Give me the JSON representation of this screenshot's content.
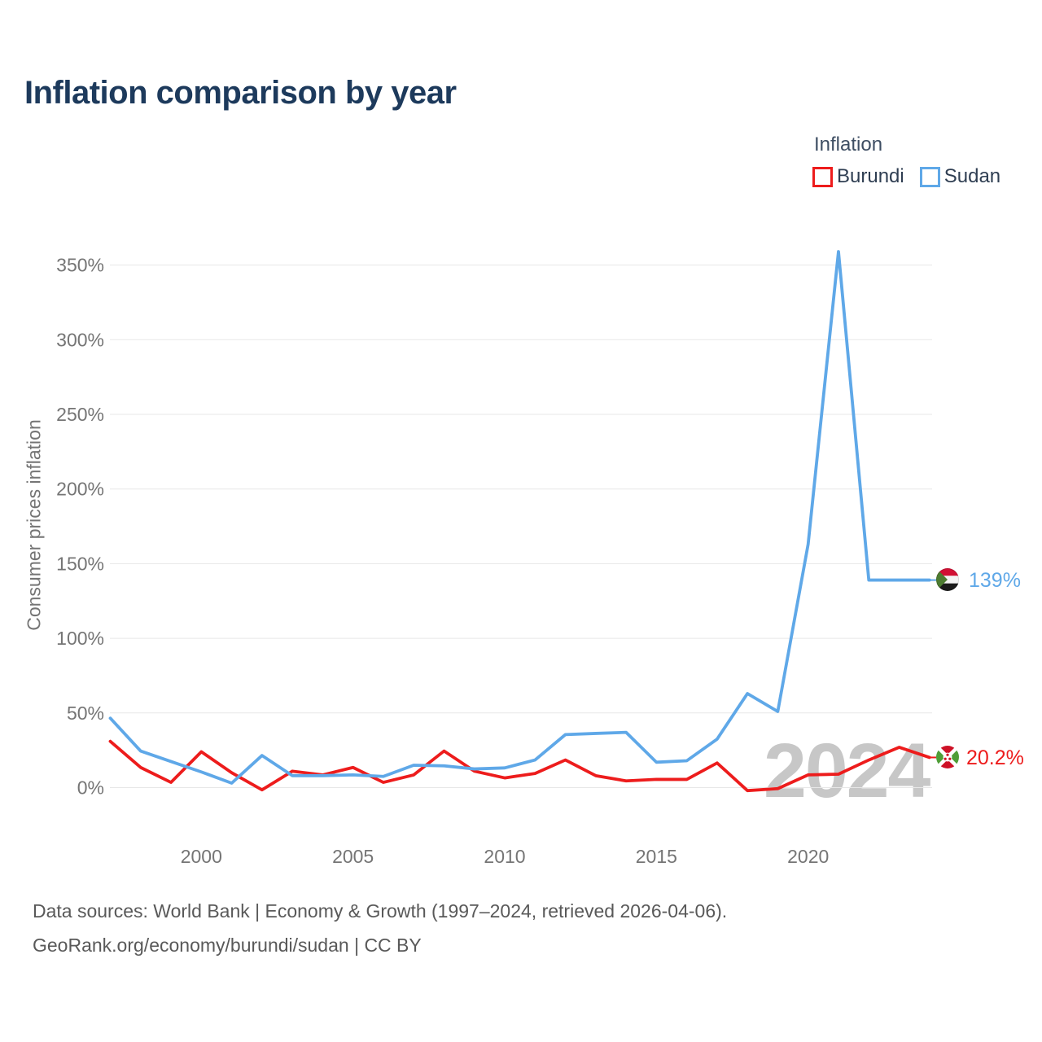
{
  "title": "Inflation comparison by year",
  "legend": {
    "title": "Inflation",
    "items": [
      {
        "label": "Burundi",
        "color": "#ed1c1c"
      },
      {
        "label": "Sudan",
        "color": "#5fa8e8"
      }
    ]
  },
  "watermark": "2024",
  "end_labels": {
    "sudan": "139%",
    "burundi": "20.2%"
  },
  "footer": {
    "line1": "Data sources: World Bank | Economy & Growth (1997–2024, retrieved 2026-04-06).",
    "line2": "GeoRank.org/economy/burundi/sudan | CC BY"
  },
  "chart_data": {
    "type": "line",
    "title": "Inflation comparison by year",
    "xlabel": "",
    "ylabel": "Consumer prices inflation",
    "legend_position": "top-right",
    "grid": "horizontal",
    "ylim": [
      0,
      350
    ],
    "x": [
      1997,
      1998,
      1999,
      2000,
      2001,
      2002,
      2003,
      2004,
      2005,
      2006,
      2007,
      2008,
      2009,
      2010,
      2011,
      2012,
      2013,
      2014,
      2015,
      2016,
      2017,
      2018,
      2019,
      2020,
      2021,
      2022,
      2023,
      2024
    ],
    "series": [
      {
        "name": "Burundi",
        "color": "#ed1c1c",
        "values": [
          31,
          13.5,
          3.5,
          24,
          10,
          -1.5,
          11,
          8.5,
          13.5,
          3.5,
          8.5,
          24.5,
          11,
          6.5,
          9.5,
          18.5,
          8,
          4.5,
          5.5,
          5.5,
          16.5,
          -2,
          -0.7,
          8.5,
          9,
          18.5,
          27,
          20.2
        ]
      },
      {
        "name": "Sudan",
        "color": "#5fa8e8",
        "values": [
          46.5,
          24.5,
          17.5,
          10.5,
          3,
          21.5,
          8,
          8,
          8.5,
          7.5,
          15,
          14.6,
          12.5,
          13.2,
          18.5,
          35.5,
          36.3,
          37,
          17,
          18,
          32.5,
          63,
          51,
          163,
          359,
          139,
          139,
          139
        ]
      }
    ],
    "y_ticks": [
      "0%",
      "50%",
      "100%",
      "150%",
      "200%",
      "250%",
      "300%",
      "350%"
    ],
    "y_tick_values": [
      0,
      50,
      100,
      150,
      200,
      250,
      300,
      350
    ],
    "x_ticks": [
      "2000",
      "2005",
      "2010",
      "2015",
      "2020"
    ],
    "x_tick_values": [
      2000,
      2005,
      2010,
      2015,
      2020
    ]
  }
}
